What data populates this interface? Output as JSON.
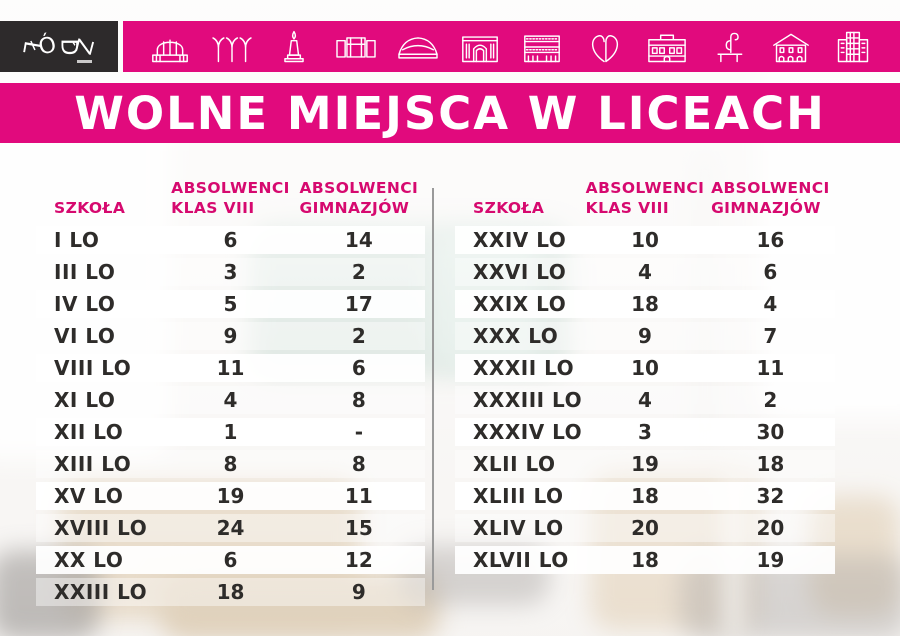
{
  "title": "WOLNE MIEJSCA W LICEACH",
  "logo": {
    "text": "ŁÓDŹ"
  },
  "header_banner": {
    "icons": [
      "market-hall",
      "station-canopy",
      "monument",
      "modernist-building",
      "arena",
      "philharmonic",
      "layered-building",
      "heart-sculpture",
      "palace",
      "bench-sculpture",
      "villa",
      "office-tower"
    ]
  },
  "columns": {
    "school": "SZKOŁA",
    "absolwenci_klas_viii": [
      "ABSOLWENCI",
      "KLAS VIII"
    ],
    "absolwenci_gimnazjow": [
      "ABSOLWENCI",
      "GIMNAZJÓW"
    ]
  },
  "colors": {
    "magenta": "#e10a7d",
    "header_text": "#d6096f",
    "logo_bg": "#2d2a2b",
    "row_text": "#2e2c2a",
    "divider": "#9a9a9a"
  },
  "chart_data": [
    {
      "type": "table",
      "name": "left-table",
      "title": "WOLNE MIEJSCA W LICEACH",
      "columns": [
        "SZKOŁA",
        "ABSOLWENCI KLAS VIII",
        "ABSOLWENCI GIMNAZJÓW"
      ],
      "rows": [
        [
          "I LO",
          "6",
          "14"
        ],
        [
          "III LO",
          "3",
          "2"
        ],
        [
          "IV LO",
          "5",
          "17"
        ],
        [
          "VI LO",
          "9",
          "2"
        ],
        [
          "VIII LO",
          "11",
          "6"
        ],
        [
          "XI LO",
          "4",
          "8"
        ],
        [
          "XII LO",
          "1",
          "-"
        ],
        [
          "XIII LO",
          "8",
          "8"
        ],
        [
          "XV LO",
          "19",
          "11"
        ],
        [
          "XVIII LO",
          "24",
          "15"
        ],
        [
          "XX LO",
          "6",
          "12"
        ],
        [
          "XXIII LO",
          "18",
          "9"
        ]
      ]
    },
    {
      "type": "table",
      "name": "right-table",
      "title": "WOLNE MIEJSCA W LICEACH",
      "columns": [
        "SZKOŁA",
        "ABSOLWENCI KLAS VIII",
        "ABSOLWENCI GIMNAZJÓW"
      ],
      "rows": [
        [
          "XXIV LO",
          "10",
          "16"
        ],
        [
          "XXVI LO",
          "4",
          "6"
        ],
        [
          "XXIX LO",
          "18",
          "4"
        ],
        [
          "XXX LO",
          "9",
          "7"
        ],
        [
          "XXXII LO",
          "10",
          "11"
        ],
        [
          "XXXIII LO",
          "4",
          "2"
        ],
        [
          "XXXIV LO",
          "3",
          "30"
        ],
        [
          "XLII LO",
          "19",
          "18"
        ],
        [
          "XLIII LO",
          "18",
          "32"
        ],
        [
          "XLIV LO",
          "20",
          "20"
        ],
        [
          "XLVII LO",
          "18",
          "19"
        ]
      ]
    }
  ]
}
